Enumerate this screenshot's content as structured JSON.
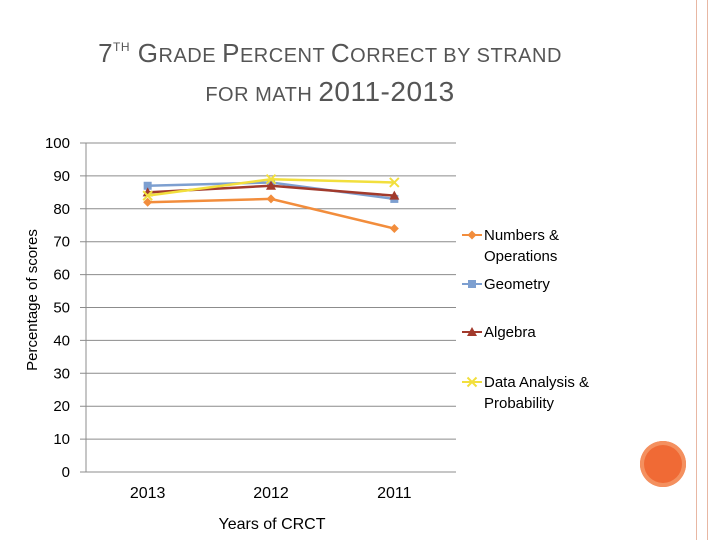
{
  "title": {
    "line1": [
      {
        "text": "7",
        "cls": "big"
      },
      {
        "text": "TH",
        "cls": "sup"
      },
      {
        "text": " G",
        "cls": "big"
      },
      {
        "text": "RADE ",
        "cls": "small"
      },
      {
        "text": "P",
        "cls": "big"
      },
      {
        "text": "ERCENT ",
        "cls": "small"
      },
      {
        "text": "C",
        "cls": "big"
      },
      {
        "text": "ORRECT BY STRAND",
        "cls": "small"
      }
    ],
    "line2": [
      {
        "text": "FOR MATH ",
        "cls": "small"
      },
      {
        "text": "2011-2013",
        "cls": "year"
      }
    ]
  },
  "chart_data": {
    "type": "line",
    "title": "7TH GRADE PERCENT CORRECT BY STRAND FOR MATH 2011-2013",
    "xlabel": "Years of CRCT",
    "ylabel": "Percentage of scores",
    "categories": [
      "2013",
      "2012",
      "2011"
    ],
    "ylim": [
      0,
      100
    ],
    "yticks": [
      0,
      10,
      20,
      30,
      40,
      50,
      60,
      70,
      80,
      90,
      100
    ],
    "grid": true,
    "legend_position": "right",
    "series": [
      {
        "name": "Numbers & Operations",
        "name_lines": [
          "Numbers &",
          "Operations"
        ],
        "values": [
          82,
          83,
          74
        ],
        "color": "#f28d3c",
        "marker": "diamond"
      },
      {
        "name": "Geometry",
        "name_lines": [
          "Geometry"
        ],
        "values": [
          87,
          88,
          83
        ],
        "color": "#7d9fd0",
        "marker": "square"
      },
      {
        "name": "Algebra",
        "name_lines": [
          "Algebra"
        ],
        "values": [
          85,
          87,
          84
        ],
        "color": "#a23a2c",
        "marker": "triangle"
      },
      {
        "name": "Data Analysis & Probability",
        "name_lines": [
          "Data Analysis &",
          "Probability"
        ],
        "values": [
          84,
          89,
          88
        ],
        "color": "#f2df3d",
        "marker": "x"
      }
    ]
  }
}
